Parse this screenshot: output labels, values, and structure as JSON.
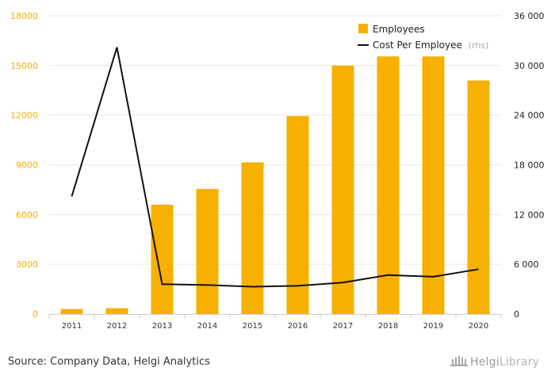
{
  "chart_data": {
    "type": "bar",
    "categories": [
      "2011",
      "2012",
      "2013",
      "2014",
      "2015",
      "2016",
      "2017",
      "2018",
      "2019",
      "2020"
    ],
    "series": [
      {
        "name": "Employees",
        "type": "bar",
        "axis": "left",
        "values": [
          300,
          350,
          6600,
          7550,
          9150,
          11950,
          15000,
          15550,
          15550,
          14100
        ]
      },
      {
        "name": "Cost Per Employee",
        "suffix": "(rhs)",
        "type": "line",
        "axis": "right",
        "values": [
          14200,
          32200,
          3600,
          3500,
          3300,
          3400,
          3800,
          4700,
          4500,
          5400
        ]
      }
    ],
    "y_left": {
      "range": [
        0,
        18000
      ],
      "ticks": [
        "0",
        "3000",
        "6000",
        "9000",
        "12000",
        "15000",
        "18000"
      ]
    },
    "y_right": {
      "range": [
        0,
        36000
      ],
      "ticks": [
        "0",
        "6 000",
        "12 000",
        "18 000",
        "24 000",
        "30 000",
        "36 000"
      ]
    },
    "legend_position": "top-right",
    "colors": {
      "bar": "#f7b000",
      "line": "#111111",
      "grid": "#e6e6e6",
      "left_tick": "#f2b000"
    }
  },
  "footer": {
    "source": "Source: Company Data, Helgi Analytics",
    "logo_primary": "Helgi",
    "logo_secondary": "Library"
  }
}
